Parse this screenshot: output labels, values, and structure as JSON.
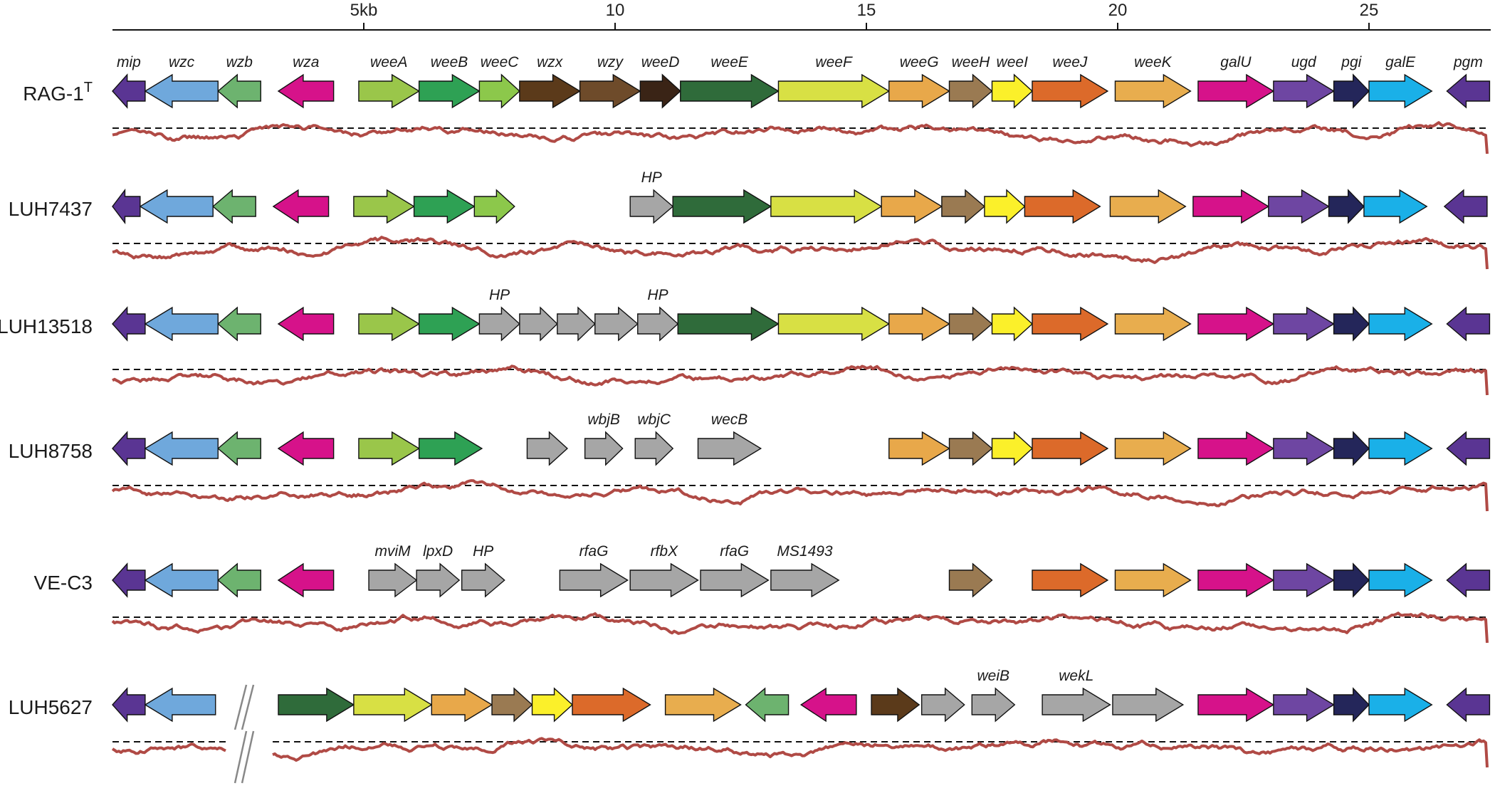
{
  "scale": {
    "ticks": [
      {
        "kb": 5,
        "label": "5kb"
      },
      {
        "kb": 10,
        "label": "10"
      },
      {
        "kb": 15,
        "label": "15"
      },
      {
        "kb": 20,
        "label": "20"
      },
      {
        "kb": 25,
        "label": "25"
      }
    ]
  },
  "colors": {
    "mip": "#5a3593",
    "wzc": "#6fa8dc",
    "wzb": "#6db36f",
    "wza": "#d6128a",
    "weeA": "#9ac64a",
    "weeB": "#2ea154",
    "weeC": "#8cc84b",
    "wzx": "#5b3a1a",
    "wzy": "#6e4b2a",
    "weeD": "#3a2416",
    "weeE": "#2f6b3a",
    "weeF": "#d8e044",
    "weeG": "#e8a84a",
    "weeH": "#9a7a52",
    "weeI": "#fbf02a",
    "weeJ": "#dc6a2a",
    "weeK": "#e8ad4e",
    "galU": "#d6128a",
    "ugd": "#6e46a2",
    "pgi": "#24265a",
    "galE": "#1ab0e8",
    "pgm": "#5a3593",
    "gray": "#a6a6a6"
  },
  "strains": [
    {
      "name": "RAG-1",
      "superscript": "T",
      "genes": [
        {
          "label": "mip",
          "start": 0.0,
          "end": 0.65,
          "strand": "-",
          "color": "mip"
        },
        {
          "label": "wzc",
          "start": 0.65,
          "end": 2.1,
          "strand": "-",
          "color": "wzc"
        },
        {
          "label": "wzb",
          "start": 2.1,
          "end": 2.95,
          "strand": "-",
          "color": "wzb"
        },
        {
          "label": "wza",
          "start": 3.3,
          "end": 4.4,
          "strand": "-",
          "color": "wza"
        },
        {
          "label": "weeA",
          "start": 4.9,
          "end": 6.1,
          "strand": "+",
          "color": "weeA"
        },
        {
          "label": "weeB",
          "start": 6.1,
          "end": 7.3,
          "strand": "+",
          "color": "weeB"
        },
        {
          "label": "weeC",
          "start": 7.3,
          "end": 8.1,
          "strand": "+",
          "color": "weeC"
        },
        {
          "label": "wzx",
          "start": 8.1,
          "end": 9.3,
          "strand": "+",
          "color": "wzx"
        },
        {
          "label": "wzy",
          "start": 9.3,
          "end": 10.5,
          "strand": "+",
          "color": "wzy"
        },
        {
          "label": "weeD",
          "start": 10.5,
          "end": 11.3,
          "strand": "+",
          "color": "weeD"
        },
        {
          "label": "weeE",
          "start": 11.3,
          "end": 13.25,
          "strand": "+",
          "color": "weeE"
        },
        {
          "label": "weeF",
          "start": 13.25,
          "end": 15.45,
          "strand": "+",
          "color": "weeF"
        },
        {
          "label": "weeG",
          "start": 15.45,
          "end": 16.65,
          "strand": "+",
          "color": "weeG"
        },
        {
          "label": "weeH",
          "start": 16.65,
          "end": 17.5,
          "strand": "+",
          "color": "weeH"
        },
        {
          "label": "weeI",
          "start": 17.5,
          "end": 18.3,
          "strand": "+",
          "color": "weeI"
        },
        {
          "label": "weeJ",
          "start": 18.3,
          "end": 19.8,
          "strand": "+",
          "color": "weeJ"
        },
        {
          "label": "weeK",
          "start": 19.95,
          "end": 21.45,
          "strand": "+",
          "color": "weeK"
        },
        {
          "label": "galU",
          "start": 21.6,
          "end": 23.1,
          "strand": "+",
          "color": "galU"
        },
        {
          "label": "ugd",
          "start": 23.1,
          "end": 24.3,
          "strand": "+",
          "color": "ugd"
        },
        {
          "label": "pgi",
          "start": 24.3,
          "end": 25.0,
          "strand": "+",
          "color": "pgi"
        },
        {
          "label": "galE",
          "start": 25.0,
          "end": 26.25,
          "strand": "+",
          "color": "galE"
        },
        {
          "label": "pgm",
          "start": 26.55,
          "end": 27.4,
          "strand": "-",
          "color": "pgm"
        }
      ]
    },
    {
      "name": "LUH7437",
      "superscript": "",
      "genes": [
        {
          "label": "",
          "start": 0.0,
          "end": 0.55,
          "strand": "-",
          "color": "mip"
        },
        {
          "label": "",
          "start": 0.55,
          "end": 2.0,
          "strand": "-",
          "color": "wzc"
        },
        {
          "label": "",
          "start": 2.0,
          "end": 2.85,
          "strand": "-",
          "color": "wzb"
        },
        {
          "label": "",
          "start": 3.2,
          "end": 4.3,
          "strand": "-",
          "color": "wza"
        },
        {
          "label": "",
          "start": 4.8,
          "end": 6.0,
          "strand": "+",
          "color": "weeA"
        },
        {
          "label": "",
          "start": 6.0,
          "end": 7.2,
          "strand": "+",
          "color": "weeB"
        },
        {
          "label": "",
          "start": 7.2,
          "end": 8.0,
          "strand": "+",
          "color": "weeC"
        },
        {
          "label": "HP",
          "start": 10.3,
          "end": 11.15,
          "strand": "+",
          "color": "gray"
        },
        {
          "label": "",
          "start": 11.15,
          "end": 13.1,
          "strand": "+",
          "color": "weeE"
        },
        {
          "label": "",
          "start": 13.1,
          "end": 15.3,
          "strand": "+",
          "color": "weeF"
        },
        {
          "label": "",
          "start": 15.3,
          "end": 16.5,
          "strand": "+",
          "color": "weeG"
        },
        {
          "label": "",
          "start": 16.5,
          "end": 17.35,
          "strand": "+",
          "color": "weeH"
        },
        {
          "label": "",
          "start": 17.35,
          "end": 18.15,
          "strand": "+",
          "color": "weeI"
        },
        {
          "label": "",
          "start": 18.15,
          "end": 19.65,
          "strand": "+",
          "color": "weeJ"
        },
        {
          "label": "",
          "start": 19.85,
          "end": 21.35,
          "strand": "+",
          "color": "weeK"
        },
        {
          "label": "",
          "start": 21.5,
          "end": 23.0,
          "strand": "+",
          "color": "galU"
        },
        {
          "label": "",
          "start": 23.0,
          "end": 24.2,
          "strand": "+",
          "color": "ugd"
        },
        {
          "label": "",
          "start": 24.2,
          "end": 24.9,
          "strand": "+",
          "color": "pgi"
        },
        {
          "label": "",
          "start": 24.9,
          "end": 26.15,
          "strand": "+",
          "color": "galE"
        },
        {
          "label": "",
          "start": 26.5,
          "end": 27.35,
          "strand": "-",
          "color": "pgm"
        }
      ]
    },
    {
      "name": "LUH13518",
      "superscript": "",
      "genes": [
        {
          "label": "",
          "start": 0.0,
          "end": 0.65,
          "strand": "-",
          "color": "mip"
        },
        {
          "label": "",
          "start": 0.65,
          "end": 2.1,
          "strand": "-",
          "color": "wzc"
        },
        {
          "label": "",
          "start": 2.1,
          "end": 2.95,
          "strand": "-",
          "color": "wzb"
        },
        {
          "label": "",
          "start": 3.3,
          "end": 4.4,
          "strand": "-",
          "color": "wza"
        },
        {
          "label": "",
          "start": 4.9,
          "end": 6.1,
          "strand": "+",
          "color": "weeA"
        },
        {
          "label": "",
          "start": 6.1,
          "end": 7.3,
          "strand": "+",
          "color": "weeB"
        },
        {
          "label": "HP",
          "start": 7.3,
          "end": 8.1,
          "strand": "+",
          "color": "gray"
        },
        {
          "label": "",
          "start": 8.1,
          "end": 8.85,
          "strand": "+",
          "color": "gray"
        },
        {
          "label": "",
          "start": 8.85,
          "end": 9.6,
          "strand": "+",
          "color": "gray"
        },
        {
          "label": "",
          "start": 9.6,
          "end": 10.45,
          "strand": "+",
          "color": "gray"
        },
        {
          "label": "HP",
          "start": 10.45,
          "end": 11.25,
          "strand": "+",
          "color": "gray"
        },
        {
          "label": "",
          "start": 11.25,
          "end": 13.25,
          "strand": "+",
          "color": "weeE"
        },
        {
          "label": "",
          "start": 13.25,
          "end": 15.45,
          "strand": "+",
          "color": "weeF"
        },
        {
          "label": "",
          "start": 15.45,
          "end": 16.65,
          "strand": "+",
          "color": "weeG"
        },
        {
          "label": "",
          "start": 16.65,
          "end": 17.5,
          "strand": "+",
          "color": "weeH"
        },
        {
          "label": "",
          "start": 17.5,
          "end": 18.3,
          "strand": "+",
          "color": "weeI"
        },
        {
          "label": "",
          "start": 18.3,
          "end": 19.8,
          "strand": "+",
          "color": "weeJ"
        },
        {
          "label": "",
          "start": 19.95,
          "end": 21.45,
          "strand": "+",
          "color": "weeK"
        },
        {
          "label": "",
          "start": 21.6,
          "end": 23.1,
          "strand": "+",
          "color": "galU"
        },
        {
          "label": "",
          "start": 23.1,
          "end": 24.3,
          "strand": "+",
          "color": "ugd"
        },
        {
          "label": "",
          "start": 24.3,
          "end": 25.0,
          "strand": "+",
          "color": "pgi"
        },
        {
          "label": "",
          "start": 25.0,
          "end": 26.25,
          "strand": "+",
          "color": "galE"
        },
        {
          "label": "",
          "start": 26.55,
          "end": 27.4,
          "strand": "-",
          "color": "pgm"
        }
      ]
    },
    {
      "name": "LUH8758",
      "superscript": "",
      "genes": [
        {
          "label": "",
          "start": 0.0,
          "end": 0.65,
          "strand": "-",
          "color": "mip"
        },
        {
          "label": "",
          "start": 0.65,
          "end": 2.1,
          "strand": "-",
          "color": "wzc"
        },
        {
          "label": "",
          "start": 2.1,
          "end": 2.95,
          "strand": "-",
          "color": "wzb"
        },
        {
          "label": "",
          "start": 3.3,
          "end": 4.4,
          "strand": "-",
          "color": "wza"
        },
        {
          "label": "",
          "start": 4.9,
          "end": 6.1,
          "strand": "+",
          "color": "weeA"
        },
        {
          "label": "",
          "start": 6.1,
          "end": 7.35,
          "strand": "+",
          "color": "weeB"
        },
        {
          "label": "",
          "start": 8.25,
          "end": 9.05,
          "strand": "+",
          "color": "gray"
        },
        {
          "label": "wbjB",
          "start": 9.4,
          "end": 10.15,
          "strand": "+",
          "color": "gray"
        },
        {
          "label": "wbjC",
          "start": 10.4,
          "end": 11.15,
          "strand": "+",
          "color": "gray"
        },
        {
          "label": "wecB",
          "start": 11.65,
          "end": 12.9,
          "strand": "+",
          "color": "gray"
        },
        {
          "label": "",
          "start": 15.45,
          "end": 16.65,
          "strand": "+",
          "color": "weeG"
        },
        {
          "label": "",
          "start": 16.65,
          "end": 17.5,
          "strand": "+",
          "color": "weeH"
        },
        {
          "label": "",
          "start": 17.5,
          "end": 18.3,
          "strand": "+",
          "color": "weeI"
        },
        {
          "label": "",
          "start": 18.3,
          "end": 19.8,
          "strand": "+",
          "color": "weeJ"
        },
        {
          "label": "",
          "start": 19.95,
          "end": 21.45,
          "strand": "+",
          "color": "weeK"
        },
        {
          "label": "",
          "start": 21.6,
          "end": 23.1,
          "strand": "+",
          "color": "galU"
        },
        {
          "label": "",
          "start": 23.1,
          "end": 24.3,
          "strand": "+",
          "color": "ugd"
        },
        {
          "label": "",
          "start": 24.3,
          "end": 25.0,
          "strand": "+",
          "color": "pgi"
        },
        {
          "label": "",
          "start": 25.0,
          "end": 26.25,
          "strand": "+",
          "color": "galE"
        },
        {
          "label": "",
          "start": 26.55,
          "end": 27.4,
          "strand": "-",
          "color": "pgm"
        }
      ]
    },
    {
      "name": "VE-C3",
      "superscript": "",
      "genes": [
        {
          "label": "",
          "start": 0.0,
          "end": 0.65,
          "strand": "-",
          "color": "mip"
        },
        {
          "label": "",
          "start": 0.65,
          "end": 2.1,
          "strand": "-",
          "color": "wzc"
        },
        {
          "label": "",
          "start": 2.1,
          "end": 2.95,
          "strand": "-",
          "color": "wzb"
        },
        {
          "label": "",
          "start": 3.3,
          "end": 4.4,
          "strand": "-",
          "color": "wza"
        },
        {
          "label": "mviM",
          "start": 5.1,
          "end": 6.05,
          "strand": "+",
          "color": "gray"
        },
        {
          "label": "lpxD",
          "start": 6.05,
          "end": 6.9,
          "strand": "+",
          "color": "gray"
        },
        {
          "label": "HP",
          "start": 6.95,
          "end": 7.8,
          "strand": "+",
          "color": "gray"
        },
        {
          "label": "rfaG",
          "start": 8.9,
          "end": 10.25,
          "strand": "+",
          "color": "gray"
        },
        {
          "label": "rfbX",
          "start": 10.3,
          "end": 11.65,
          "strand": "+",
          "color": "gray"
        },
        {
          "label": "rfaG",
          "start": 11.7,
          "end": 13.05,
          "strand": "+",
          "color": "gray"
        },
        {
          "label": "MS1493",
          "start": 13.1,
          "end": 14.45,
          "strand": "+",
          "color": "gray"
        },
        {
          "label": "",
          "start": 16.65,
          "end": 17.5,
          "strand": "+",
          "color": "weeH"
        },
        {
          "label": "",
          "start": 18.3,
          "end": 19.8,
          "strand": "+",
          "color": "weeJ"
        },
        {
          "label": "",
          "start": 19.95,
          "end": 21.45,
          "strand": "+",
          "color": "weeK"
        },
        {
          "label": "",
          "start": 21.6,
          "end": 23.1,
          "strand": "+",
          "color": "galU"
        },
        {
          "label": "",
          "start": 23.1,
          "end": 24.3,
          "strand": "+",
          "color": "ugd"
        },
        {
          "label": "",
          "start": 24.3,
          "end": 25.0,
          "strand": "+",
          "color": "pgi"
        },
        {
          "label": "",
          "start": 25.0,
          "end": 26.25,
          "strand": "+",
          "color": "galE"
        },
        {
          "label": "",
          "start": 26.55,
          "end": 27.4,
          "strand": "-",
          "color": "pgm"
        }
      ]
    },
    {
      "name": "LUH5627",
      "superscript": "",
      "break_kb": 2.55,
      "genes": [
        {
          "label": "",
          "start": 0.0,
          "end": 0.65,
          "strand": "-",
          "color": "mip"
        },
        {
          "label": "",
          "start": 0.65,
          "end": 2.05,
          "strand": "-",
          "color": "wzc"
        },
        {
          "label": "",
          "start": 3.3,
          "end": 4.8,
          "strand": "+",
          "color": "weeE"
        },
        {
          "label": "",
          "start": 4.8,
          "end": 6.35,
          "strand": "+",
          "color": "weeF"
        },
        {
          "label": "",
          "start": 6.35,
          "end": 7.55,
          "strand": "+",
          "color": "weeG"
        },
        {
          "label": "",
          "start": 7.55,
          "end": 8.35,
          "strand": "+",
          "color": "weeH"
        },
        {
          "label": "",
          "start": 8.35,
          "end": 9.15,
          "strand": "+",
          "color": "weeI"
        },
        {
          "label": "",
          "start": 9.15,
          "end": 10.7,
          "strand": "+",
          "color": "weeJ"
        },
        {
          "label": "",
          "start": 11.0,
          "end": 12.5,
          "strand": "+",
          "color": "weeK"
        },
        {
          "label": "",
          "start": 12.6,
          "end": 13.45,
          "strand": "-",
          "color": "wzb"
        },
        {
          "label": "",
          "start": 13.7,
          "end": 14.8,
          "strand": "-",
          "color": "wza"
        },
        {
          "label": "",
          "start": 15.1,
          "end": 16.05,
          "strand": "+",
          "color": "wzx"
        },
        {
          "label": "",
          "start": 16.1,
          "end": 16.95,
          "strand": "+",
          "color": "gray"
        },
        {
          "label": "weiB",
          "start": 17.1,
          "end": 17.95,
          "strand": "+",
          "color": "gray"
        },
        {
          "label": "wekL",
          "start": 18.5,
          "end": 19.85,
          "strand": "+",
          "color": "gray"
        },
        {
          "label": "",
          "start": 19.9,
          "end": 21.3,
          "strand": "+",
          "color": "gray"
        },
        {
          "label": "",
          "start": 21.6,
          "end": 23.1,
          "strand": "+",
          "color": "galU"
        },
        {
          "label": "",
          "start": 23.1,
          "end": 24.3,
          "strand": "+",
          "color": "ugd"
        },
        {
          "label": "",
          "start": 24.3,
          "end": 25.0,
          "strand": "+",
          "color": "pgi"
        },
        {
          "label": "",
          "start": 25.0,
          "end": 26.25,
          "strand": "+",
          "color": "galE"
        },
        {
          "label": "",
          "start": 26.55,
          "end": 27.4,
          "strand": "-",
          "color": "pgm"
        }
      ]
    }
  ]
}
